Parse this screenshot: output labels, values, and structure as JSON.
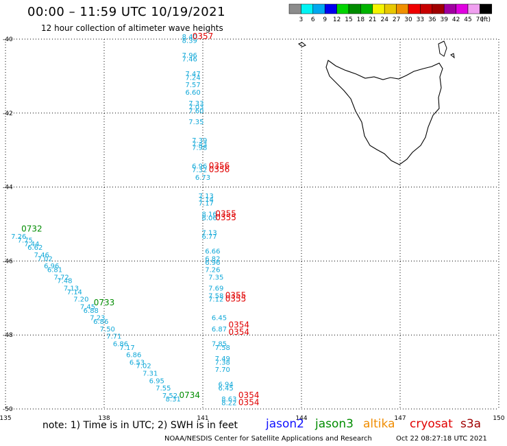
{
  "title": "00:00 – 11:59 UTC 10/19/2021",
  "subtitle": "12 hour collection of altimeter wave heights",
  "colorbar": {
    "colors": [
      "#8c8c8c",
      "#00f4f4",
      "#00a8f0",
      "#0000f0",
      "#00d400",
      "#008c00",
      "#00b400",
      "#f4f400",
      "#e8c800",
      "#f09000",
      "#f00000",
      "#c80000",
      "#a00000",
      "#a000a0",
      "#e000e0",
      "#f0a0f0",
      "#000000"
    ],
    "labels": [
      "3",
      "6",
      "9",
      "12",
      "15",
      "18",
      "21",
      "24",
      "27",
      "30",
      "33",
      "36",
      "39",
      "42",
      "45",
      "70"
    ],
    "unit": "(ft)"
  },
  "note": "note: 1) Time is in UTC; 2) SWH is in feet",
  "satellites": [
    {
      "name": "jason2",
      "color": "#1010ff"
    },
    {
      "name": "jason3",
      "color": "#008c00"
    },
    {
      "name": "altika",
      "color": "#f08c00"
    },
    {
      "name": "cryosat",
      "color": "#e00000"
    },
    {
      "name": "s3a",
      "color": "#a00000"
    }
  ],
  "credit": "NOAA/NESDIS Center for Satellite Applications and Research",
  "timestamp": "Oct 22 08:27:18 UTC 2021",
  "chart_data": {
    "type": "scatter",
    "xlim": [
      135,
      150
    ],
    "ylim": [
      -50,
      -40
    ],
    "x_ticks": [
      "135",
      "138",
      "141",
      "144",
      "147",
      "150"
    ],
    "y_ticks": [
      "-40",
      "-42",
      "-44",
      "-46",
      "-48",
      "-50"
    ],
    "grid": true,
    "wave_height_labels": [
      {
        "lon": 140.6,
        "lat": -40.0,
        "text": "8.40"
      },
      {
        "lon": 140.6,
        "lat": -40.1,
        "text": "8.39"
      },
      {
        "lon": 140.6,
        "lat": -40.5,
        "text": "7.96"
      },
      {
        "lon": 140.6,
        "lat": -40.6,
        "text": "7.46"
      },
      {
        "lon": 140.7,
        "lat": -41.0,
        "text": "7.47"
      },
      {
        "lon": 140.7,
        "lat": -41.1,
        "text": "7.24"
      },
      {
        "lon": 140.7,
        "lat": -41.3,
        "text": "7.57"
      },
      {
        "lon": 140.7,
        "lat": -41.5,
        "text": "6.60"
      },
      {
        "lon": 140.8,
        "lat": -41.8,
        "text": "7.33"
      },
      {
        "lon": 140.8,
        "lat": -41.9,
        "text": "7.03"
      },
      {
        "lon": 140.8,
        "lat": -42.0,
        "text": "7.60"
      },
      {
        "lon": 140.8,
        "lat": -42.3,
        "text": "7.35"
      },
      {
        "lon": 140.9,
        "lat": -42.8,
        "text": "7.39"
      },
      {
        "lon": 140.9,
        "lat": -42.9,
        "text": "7.43"
      },
      {
        "lon": 140.9,
        "lat": -43.0,
        "text": "7.98"
      },
      {
        "lon": 140.9,
        "lat": -43.5,
        "text": "6.96"
      },
      {
        "lon": 140.9,
        "lat": -43.6,
        "text": "7.32"
      },
      {
        "lon": 141.0,
        "lat": -43.8,
        "text": "6.73"
      },
      {
        "lon": 141.1,
        "lat": -44.3,
        "text": "7.13"
      },
      {
        "lon": 141.1,
        "lat": -44.4,
        "text": "7.14"
      },
      {
        "lon": 141.1,
        "lat": -44.5,
        "text": "7.17"
      },
      {
        "lon": 141.2,
        "lat": -44.8,
        "text": "8.16"
      },
      {
        "lon": 141.2,
        "lat": -44.9,
        "text": "8.06"
      },
      {
        "lon": 141.2,
        "lat": -45.3,
        "text": "7.13"
      },
      {
        "lon": 141.2,
        "lat": -45.4,
        "text": "6.77"
      },
      {
        "lon": 141.3,
        "lat": -45.8,
        "text": "6.66"
      },
      {
        "lon": 141.3,
        "lat": -46.0,
        "text": "6.82"
      },
      {
        "lon": 141.3,
        "lat": -46.1,
        "text": "6.96"
      },
      {
        "lon": 141.3,
        "lat": -46.3,
        "text": "7.26"
      },
      {
        "lon": 141.4,
        "lat": -46.5,
        "text": "7.35"
      },
      {
        "lon": 141.4,
        "lat": -46.8,
        "text": "7.69"
      },
      {
        "lon": 141.4,
        "lat": -47.0,
        "text": "7.58"
      },
      {
        "lon": 141.4,
        "lat": -47.1,
        "text": "7.12"
      },
      {
        "lon": 141.5,
        "lat": -47.6,
        "text": "6.45"
      },
      {
        "lon": 141.5,
        "lat": -47.9,
        "text": "6.87"
      },
      {
        "lon": 141.5,
        "lat": -48.3,
        "text": "7.85"
      },
      {
        "lon": 141.6,
        "lat": -48.4,
        "text": "7.58"
      },
      {
        "lon": 141.6,
        "lat": -48.7,
        "text": "7.49"
      },
      {
        "lon": 141.6,
        "lat": -48.8,
        "text": "7.38"
      },
      {
        "lon": 141.6,
        "lat": -49.0,
        "text": "7.70"
      },
      {
        "lon": 141.7,
        "lat": -49.4,
        "text": "6.94"
      },
      {
        "lon": 141.7,
        "lat": -49.5,
        "text": "6.45"
      },
      {
        "lon": 141.8,
        "lat": -49.8,
        "text": "8.63"
      },
      {
        "lon": 141.8,
        "lat": -49.9,
        "text": "8.22"
      },
      {
        "lon": 135.4,
        "lat": -45.4,
        "text": "7.26"
      },
      {
        "lon": 135.6,
        "lat": -45.5,
        "text": "7.75"
      },
      {
        "lon": 135.8,
        "lat": -45.6,
        "text": "7.44"
      },
      {
        "lon": 135.9,
        "lat": -45.7,
        "text": "6.62"
      },
      {
        "lon": 136.1,
        "lat": -45.9,
        "text": "7.46"
      },
      {
        "lon": 136.2,
        "lat": -46.0,
        "text": "7.02"
      },
      {
        "lon": 136.4,
        "lat": -46.2,
        "text": "6.96"
      },
      {
        "lon": 136.5,
        "lat": -46.3,
        "text": "6.81"
      },
      {
        "lon": 136.7,
        "lat": -46.5,
        "text": "7.72"
      },
      {
        "lon": 136.8,
        "lat": -46.6,
        "text": "7.48"
      },
      {
        "lon": 137.0,
        "lat": -46.8,
        "text": "7.13"
      },
      {
        "lon": 137.1,
        "lat": -46.9,
        "text": "7.14"
      },
      {
        "lon": 137.3,
        "lat": -47.1,
        "text": "7.20"
      },
      {
        "lon": 137.5,
        "lat": -47.3,
        "text": "7.45"
      },
      {
        "lon": 137.6,
        "lat": -47.4,
        "text": "6.88"
      },
      {
        "lon": 137.8,
        "lat": -47.6,
        "text": "7.23"
      },
      {
        "lon": 137.9,
        "lat": -47.7,
        "text": "6.86"
      },
      {
        "lon": 138.1,
        "lat": -47.9,
        "text": "7.50"
      },
      {
        "lon": 138.3,
        "lat": -48.1,
        "text": "7.71"
      },
      {
        "lon": 138.5,
        "lat": -48.3,
        "text": "6.86"
      },
      {
        "lon": 138.7,
        "lat": -48.4,
        "text": "7.17"
      },
      {
        "lon": 138.9,
        "lat": -48.6,
        "text": "6.86"
      },
      {
        "lon": 139.0,
        "lat": -48.8,
        "text": "6.53"
      },
      {
        "lon": 139.2,
        "lat": -48.9,
        "text": "7.02"
      },
      {
        "lon": 139.4,
        "lat": -49.1,
        "text": "7.31"
      },
      {
        "lon": 139.6,
        "lat": -49.3,
        "text": "6.95"
      },
      {
        "lon": 139.8,
        "lat": -49.5,
        "text": "7.55"
      },
      {
        "lon": 140.0,
        "lat": -49.7,
        "text": "7.52"
      },
      {
        "lon": 140.1,
        "lat": -49.8,
        "text": "8.31"
      }
    ],
    "time_labels": [
      {
        "lon": 141.0,
        "lat": -40.0,
        "text": "0357",
        "color": "#e00000"
      },
      {
        "lon": 141.5,
        "lat": -43.5,
        "text": "0356",
        "color": "#e00000"
      },
      {
        "lon": 141.5,
        "lat": -43.6,
        "text": "0356",
        "color": "#e00000"
      },
      {
        "lon": 141.7,
        "lat": -44.8,
        "text": "0355",
        "color": "#e00000"
      },
      {
        "lon": 141.7,
        "lat": -44.9,
        "text": "0355",
        "color": "#e00000"
      },
      {
        "lon": 142.0,
        "lat": -47.0,
        "text": "0355",
        "color": "#e00000"
      },
      {
        "lon": 142.0,
        "lat": -47.1,
        "text": "0355",
        "color": "#e00000"
      },
      {
        "lon": 142.1,
        "lat": -47.8,
        "text": "0354",
        "color": "#e00000"
      },
      {
        "lon": 142.1,
        "lat": -48.0,
        "text": "0354",
        "color": "#e00000"
      },
      {
        "lon": 142.4,
        "lat": -49.7,
        "text": "0354",
        "color": "#e00000"
      },
      {
        "lon": 142.4,
        "lat": -49.9,
        "text": "0354",
        "color": "#e00000"
      },
      {
        "lon": 135.8,
        "lat": -45.2,
        "text": "0732",
        "color": "#008c00"
      },
      {
        "lon": 138.0,
        "lat": -47.2,
        "text": "0733",
        "color": "#008c00"
      },
      {
        "lon": 140.6,
        "lat": -49.7,
        "text": "0734",
        "color": "#008c00"
      }
    ]
  }
}
